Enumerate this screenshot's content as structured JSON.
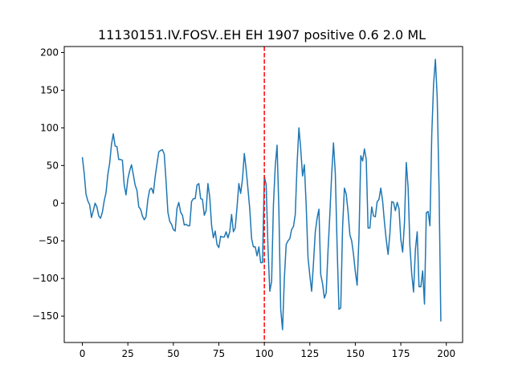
{
  "chart_data": {
    "type": "line",
    "title": "11130151.IV.FOSV..EH EH 1907 positive 0.6 2.0 ML",
    "xlabel": "",
    "ylabel": "",
    "xlim": [
      -9.95,
      208.95
    ],
    "ylim": [
      -185,
      208
    ],
    "xticks": [
      0,
      25,
      50,
      75,
      100,
      125,
      150,
      175,
      200
    ],
    "yticks": [
      -150,
      -100,
      -50,
      0,
      50,
      100,
      150,
      200
    ],
    "grid": false,
    "line_color": "#1f77b4",
    "marker_line": {
      "x": 100,
      "color": "#ff0000",
      "style": "dashed"
    },
    "series": [
      {
        "values": [
          61,
          40,
          12,
          3,
          -2,
          -19,
          -10,
          0,
          -5,
          -17,
          -20,
          -12,
          3,
          14,
          38,
          53,
          78,
          92,
          76,
          75,
          58,
          58,
          57,
          24,
          11,
          32,
          43,
          51,
          38,
          24,
          17,
          -5,
          -8,
          -17,
          -22,
          -18,
          5,
          18,
          20,
          13,
          35,
          52,
          68,
          70,
          71,
          65,
          29,
          -12,
          -24,
          -28,
          -35,
          -37,
          -7,
          1,
          -12,
          -16,
          -29,
          -28,
          -30,
          -30,
          2,
          6,
          6,
          24,
          26,
          6,
          5,
          -16,
          -10,
          26,
          8,
          -29,
          -46,
          -37,
          -55,
          -59,
          -44,
          -45,
          -45,
          -38,
          -46,
          -38,
          -15,
          -38,
          -33,
          -5,
          26,
          13,
          32,
          66,
          45,
          19,
          -8,
          -47,
          -58,
          -58,
          -70,
          -58,
          -79,
          -79,
          35,
          25,
          -58,
          -117,
          -104,
          -2,
          49,
          77,
          -9,
          -141,
          -168,
          -100,
          -55,
          -50,
          -47,
          -35,
          -31,
          -15,
          52,
          100,
          72,
          36,
          51,
          -3,
          -72,
          -96,
          -117,
          -80,
          -38,
          -20,
          -8,
          -95,
          -107,
          -126,
          -119,
          -63,
          -15,
          38,
          80,
          40,
          -58,
          -141,
          -139,
          -32,
          20,
          12,
          -11,
          -42,
          -50,
          -68,
          -91,
          -109,
          -45,
          63,
          56,
          72,
          58,
          -33,
          -33,
          -5,
          -17,
          -18,
          2,
          5,
          20,
          3,
          -25,
          -49,
          -68,
          -40,
          2,
          1,
          -10,
          1,
          -7,
          -48,
          -65,
          -26,
          54,
          21,
          -57,
          -94,
          -118,
          -62,
          -38,
          -111,
          -111,
          -90,
          -134,
          -13,
          -11,
          -30,
          90,
          158,
          191,
          140,
          21,
          -157
        ]
      }
    ]
  }
}
